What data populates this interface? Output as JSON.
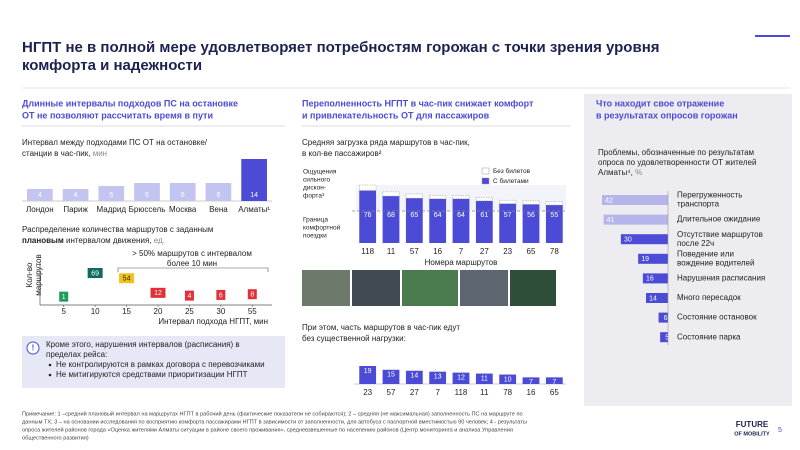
{
  "title": [
    "НГПТ не в полной мере удовлетворяет потребностям горожан с точки зрения уровня",
    "комфорта и надежности"
  ],
  "columns": [
    {
      "heading": [
        "Длинные интервалы подходов ПС на остановке",
        "ОТ не позволяют рассчитать время в пути"
      ]
    },
    {
      "heading": [
        "Переполненность НГПТ в час-пик снижает комфорт",
        "и привлекательность ОТ для пассажиров"
      ]
    },
    {
      "heading": [
        "Что находит свое отражение",
        "в результатах опросов горожан"
      ]
    }
  ],
  "callout": {
    "icon": "!",
    "text": [
      "Кроме этого, нарушения интервалов (расписания) в",
      "пределах рейса:"
    ],
    "bullets": [
      "Не контролируются в рамках договора с перевозчиками",
      "Не митигируются средствами приоритизации НГПТ"
    ]
  },
  "footnote": [
    "Примечание: 1 –средний плановый интервал на маршрутах НГПТ в рабочий день (фактические показатели не собираются); 2 – средняя (не максимальная) заполненность ПС на маршруте по",
    "данным ТХ; 3 – на основании исследования по восприятию комфорта пассажирами НГПТ в зависимости от заполненности, для автобуса с паспортной вместимостью 90 человек; 4 - результаты",
    "опроса жителей районов города «Оценка жителями Алматы ситуации в районе своего проживания», средневзвешенные по населению районов (Центр мониторинга и анализа Управления",
    "общественного развития)"
  ],
  "logo": [
    "FUTURE",
    "OF MOBILITY"
  ],
  "page_number": "5",
  "chart_data": [
    {
      "type": "bar",
      "title": [
        "Интервал между подходами ПС ОТ на остановке/",
        "станции в час-пик, "
      ],
      "unit": "мин",
      "categories": [
        "Лондон",
        "Париж",
        "Мадрид",
        "Брюссель",
        "Москва",
        "Вена",
        "Алматы¹"
      ],
      "values": [
        4,
        4,
        5,
        6,
        6,
        6,
        14
      ],
      "colors": [
        "#c4c4f0",
        "#c4c4f0",
        "#c4c4f0",
        "#c4c4f0",
        "#c4c4f0",
        "#c4c4f0",
        "#4b4bd6"
      ]
    },
    {
      "type": "line",
      "title": [
        "Распределение количества маршрутов с заданным"
      ],
      "title_bold": "плановым",
      "title_rest": " интервалом движения, ",
      "unit": "ед.",
      "categories": [
        5,
        10,
        15,
        20,
        25,
        30,
        55
      ],
      "values": [
        1,
        69,
        54,
        12,
        4,
        6,
        8
      ],
      "colors": [
        "#1f9a5a",
        "#0f6b5c",
        "#f2c21b",
        "#e0303a",
        "#e0303a",
        "#e0303a",
        "#e0303a"
      ],
      "ylabel": [
        "Кол-во",
        "маршрутов"
      ],
      "xlabel": "Интервал подхода НГПТ, мин",
      "annotation": [
        "> 50% маршрутов с интервалом",
        "более 10 мин"
      ]
    },
    {
      "type": "stacked",
      "title": [
        "Средняя загрузка ряда маршрутов в час-пик,",
        "в кол-ве пассажиров²"
      ],
      "categories": [
        "118",
        "11",
        "57",
        "16",
        "7",
        "27",
        "23",
        "65",
        "78"
      ],
      "series": [
        {
          "name": "С билетами",
          "color": "#4b4bd6",
          "values": [
            76,
            68,
            65,
            64,
            64,
            61,
            57,
            56,
            55
          ]
        },
        {
          "name": "Без билетов",
          "color": "#ffffff",
          "values": [
            8,
            6,
            6,
            5,
            5,
            5,
            5,
            5,
            5
          ]
        }
      ],
      "xlabel": "Номера маршрутов",
      "annotations": [
        [
          "Ощущения",
          "сильного",
          "дискон-",
          "форта³"
        ],
        [
          "Граница",
          "комфортной",
          "поездки"
        ]
      ]
    },
    {
      "type": "bar",
      "title": [
        "При этом, часть маршрутов в час-пик едут",
        "без существенной нагрузки:"
      ],
      "categories": [
        "23",
        "57",
        "27",
        "7",
        "118",
        "11",
        "78",
        "16",
        "65"
      ],
      "values": [
        19,
        15,
        14,
        13,
        12,
        11,
        10,
        7,
        7
      ],
      "color": "#4b4bd6"
    },
    {
      "type": "barh",
      "title": [
        "Проблемы, обозначенные по результатам",
        "опроса по удовлетворенности ОТ жителей",
        "Алматы⁴, "
      ],
      "unit": "%",
      "categories": [
        [
          "Перегруженность",
          "транспорта"
        ],
        [
          "Длительное ожидание"
        ],
        [
          "Отсутствие маршрутов",
          "после 22ч"
        ],
        [
          "Поведение или",
          "вождение водителей"
        ],
        [
          "Нарушения расписания"
        ],
        [
          "Много пересадок"
        ],
        [
          "Состояние остановок"
        ],
        [
          "Состояние парка"
        ]
      ],
      "values": [
        42,
        41,
        30,
        19,
        16,
        14,
        6,
        5
      ],
      "colors": [
        "#b5b5ea",
        "#b5b5ea",
        "#4b4bd6",
        "#4b4bd6",
        "#4b4bd6",
        "#4b4bd6",
        "#4b4bd6",
        "#4b4bd6"
      ]
    }
  ]
}
